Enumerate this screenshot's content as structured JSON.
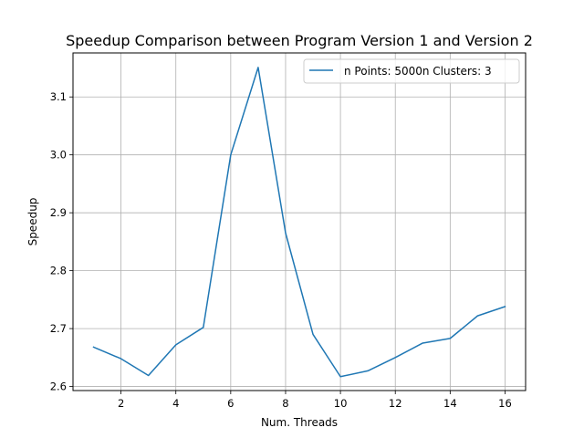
{
  "chart_data": {
    "type": "line",
    "title": "Speedup Comparison between Program Version 1 and Version 2",
    "xlabel": "Num. Threads",
    "ylabel": "Speedup",
    "xlim": [
      0.25,
      16.75
    ],
    "ylim": [
      2.593,
      3.176
    ],
    "xticks": [
      2,
      4,
      6,
      8,
      10,
      12,
      14,
      16
    ],
    "yticks": [
      2.6,
      2.7,
      2.8,
      2.9,
      3.0,
      3.1
    ],
    "xtick_labels": [
      "2",
      "4",
      "6",
      "8",
      "10",
      "12",
      "14",
      "16"
    ],
    "ytick_labels": [
      "2.6",
      "2.7",
      "2.8",
      "2.9",
      "3.0",
      "3.1"
    ],
    "grid": true,
    "legend_position": "upper-right",
    "x": [
      1,
      2,
      3,
      4,
      5,
      6,
      7,
      8,
      9,
      10,
      11,
      12,
      13,
      14,
      15,
      16
    ],
    "series": [
      {
        "name": "n Points: 5000n Clusters: 3",
        "color": "#1f77b4",
        "values": [
          2.668,
          2.648,
          2.619,
          2.672,
          2.702,
          3.0,
          3.151,
          2.865,
          2.69,
          2.617,
          2.627,
          2.65,
          2.675,
          2.683,
          2.722,
          2.738
        ]
      }
    ]
  }
}
